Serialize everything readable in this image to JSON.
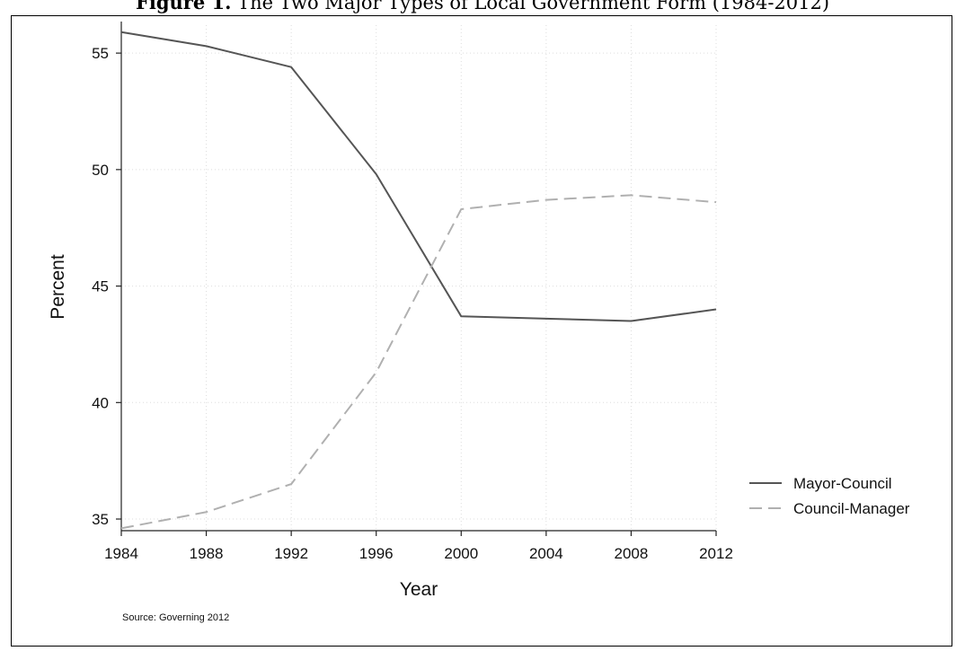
{
  "figure": {
    "label": "Figure 1.",
    "title": "The Two Major Types of Local Government Form (1984-2012)"
  },
  "chart_data": {
    "type": "line",
    "title": "Figure 1. The Two Major Types of Local Government Form (1984-2012)",
    "xlabel": "Year",
    "ylabel": "Percent",
    "x": [
      1984,
      1988,
      1992,
      1996,
      2000,
      2004,
      2008,
      2012
    ],
    "xticks": [
      "1984",
      "1988",
      "1992",
      "1996",
      "2000",
      "2004",
      "2008",
      "2012"
    ],
    "yticks": [
      "35",
      "40",
      "45",
      "50",
      "55"
    ],
    "xlim": [
      1984,
      2012
    ],
    "ylim": [
      34.5,
      56.2
    ],
    "grid": true,
    "legend_position": "right",
    "series": [
      {
        "name": "Mayor-Council",
        "style": "solid",
        "color": "#555555",
        "values": [
          55.9,
          55.3,
          54.4,
          49.8,
          43.7,
          43.6,
          43.5,
          44.0
        ]
      },
      {
        "name": "Council-Manager",
        "style": "dashed",
        "color": "#b0b0b0",
        "values": [
          34.6,
          35.3,
          36.5,
          41.3,
          48.3,
          48.7,
          48.9,
          48.6
        ]
      }
    ],
    "source_note": "Source: Governing 2012"
  }
}
